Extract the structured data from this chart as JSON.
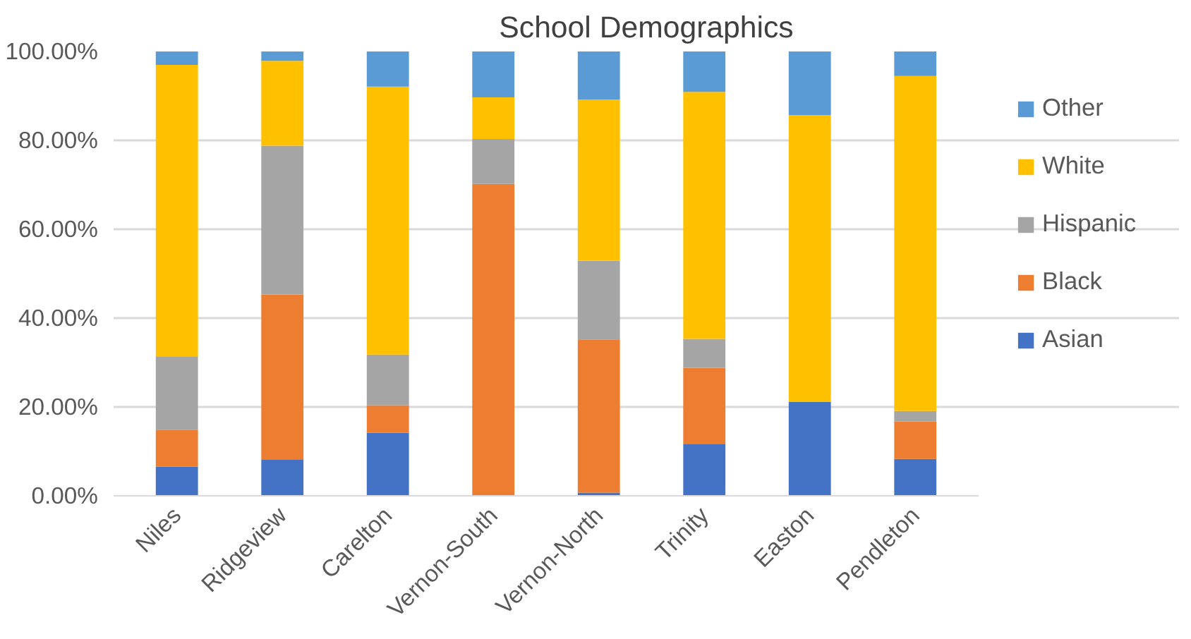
{
  "chart_data": {
    "type": "bar",
    "title": "School Demographics",
    "stacked": true,
    "categories": [
      "Niles",
      "Ridgeview",
      "Carelton",
      "Vernon-South",
      "Vernon-North",
      "Trinity",
      "Easton",
      "Pendleton"
    ],
    "series": [
      {
        "name": "Asian",
        "color": "#4472c4",
        "values": [
          6.6,
          8.2,
          14.2,
          0,
          0.7,
          11.7,
          21.1,
          8.3
        ]
      },
      {
        "name": "Black",
        "color": "#ed7d31",
        "values": [
          8.3,
          37.1,
          6.2,
          70.2,
          34.5,
          17.1,
          0,
          8.4
        ]
      },
      {
        "name": "Hispanic",
        "color": "#a5a5a5",
        "values": [
          16.5,
          33.5,
          11.4,
          10.1,
          17.7,
          6.5,
          0,
          2.4
        ]
      },
      {
        "name": "White",
        "color": "#ffc000",
        "values": [
          65.6,
          19.1,
          60.3,
          9.4,
          36.3,
          55.6,
          64.6,
          75.4
        ]
      },
      {
        "name": "Other",
        "color": "#5b9bd5",
        "values": [
          3.0,
          2.1,
          7.9,
          10.3,
          10.8,
          9.1,
          14.3,
          5.5
        ]
      }
    ],
    "ylim": [
      0,
      100
    ],
    "yticks": [
      {
        "value": 0,
        "label": "0.00%"
      },
      {
        "value": 20,
        "label": "20.00%"
      },
      {
        "value": 40,
        "label": "40.00%"
      },
      {
        "value": 60,
        "label": "60.00%"
      },
      {
        "value": 80,
        "label": "80.00%"
      },
      {
        "value": 100,
        "label": "100.00%"
      }
    ],
    "grid": "y",
    "legend": "right"
  }
}
